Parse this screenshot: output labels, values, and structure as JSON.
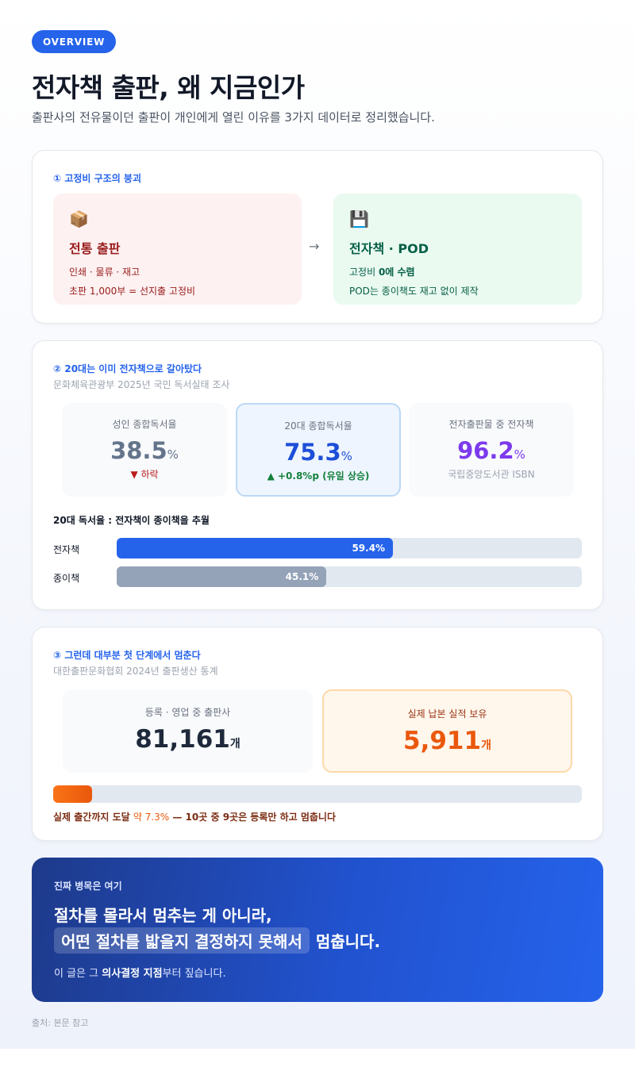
{
  "header": {
    "badge": "OVERVIEW",
    "title": "전자책 출판, 왜 지금인가",
    "subtitle": "출판사의 전유물이던 출판이 개인에게 열린 이유를 3가지 데이터로 정리했습니다."
  },
  "section1": {
    "title": "① 고정비 구조의 붕괴",
    "left": {
      "icon": "package-icon",
      "heading": "전통 출판",
      "line1": "인쇄 · 물류 · 재고",
      "line2": "초판 1,000부 = 선지출 고정비"
    },
    "arrow": "→",
    "right": {
      "icon": "floppy-disk-icon",
      "heading": "전자책 · POD",
      "line1_prefix": "고정비 ",
      "line1_strong": "0에 수렴",
      "line2": "POD는 종이책도 재고 없이 제작"
    },
    "colors": {
      "left_bg": "#fef1f1",
      "right_bg": "#eafaf1"
    }
  },
  "section2": {
    "title": "② 20대는 이미 전자책으로 갈아탔다",
    "source": "문화체육관광부 2025년 국민 독서실태 조사",
    "stats": [
      {
        "label": "성인 종합독서율",
        "value": "38.5",
        "unit": "%",
        "note": "▼ 하락",
        "color": "#64748b",
        "note_color": "#b91c1c"
      },
      {
        "label": "20대 종합독서율",
        "value": "75.3",
        "unit": "%",
        "note": "▲ +0.8%p (유일 상승)",
        "color": "#1d4ed8",
        "note_color": "#15803d"
      },
      {
        "label": "전자출판물 중 전자책",
        "value": "96.2",
        "unit": "%",
        "note": "국립중앙도서관 ISBN",
        "color": "#7c3aed",
        "note_color": "#9ca3af"
      }
    ],
    "bar_heading": "20대 독서율 : 전자책이 종이책을 추월",
    "bars": [
      {
        "label": "전자책",
        "value": 59.4,
        "display": "59.4%",
        "color": "#2563eb"
      },
      {
        "label": "종이책",
        "value": 45.1,
        "display": "45.1%",
        "color": "#94a3b8"
      }
    ]
  },
  "section3": {
    "title": "③ 그런데 대부분 첫 단계에서 멈춘다",
    "source": "대한출판문화협회 2024년 출판생산 통계",
    "stat_left": {
      "label": "등록 · 영업 중 출판사",
      "value": "81,161",
      "unit": "개"
    },
    "stat_right": {
      "label": "실제 납본 실적 보유",
      "value": "5,911",
      "unit": "개"
    },
    "progress": 7.3,
    "caption_prefix": "실제 출간까지 도달 ",
    "caption_accent": "약 7.3%",
    "caption_suffix": " — 10곳 중 9곳은 등록만 하고 멈춥니다"
  },
  "banner": {
    "label": "진짜 병목은 여기",
    "line1": "절차를 몰라서 멈추는 게 아니라,",
    "line2_highlight": "어떤 절차를 밟을지 결정하지 못해서",
    "line2_suffix": "멈춥니다.",
    "foot_prefix": "이 글은 그 ",
    "foot_strong": "의사결정 지점",
    "foot_suffix": "부터 짚습니다."
  },
  "footer": {
    "source": "출처: 본문 참고"
  }
}
